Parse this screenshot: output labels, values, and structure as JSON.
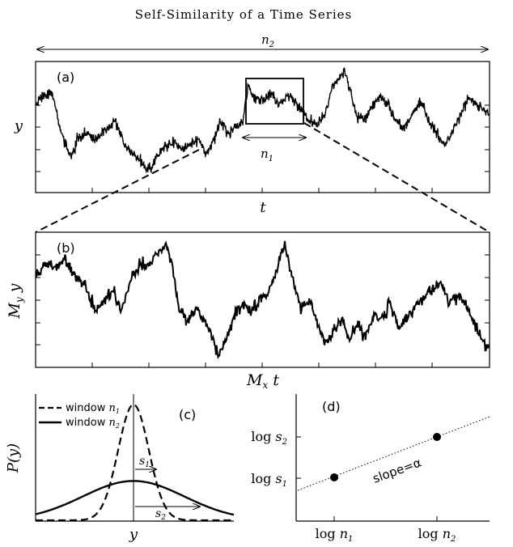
{
  "title": "Self-Similarity of a Time Series",
  "labels": {
    "n2_arrow": "n2",
    "n1_arrow": "n1",
    "panel_a": "(a)",
    "panel_b": "(b)",
    "panel_c": "(c)",
    "panel_d": "(d)",
    "axis_a_x": "t",
    "axis_a_y": "y",
    "axis_b_x": "Mx t",
    "axis_b_y": "My y",
    "axis_c_y": "P(y)",
    "axis_c_x": "y",
    "legend_n1": "window n1",
    "legend_n2": "window n2",
    "s1": "s1",
    "s2": "s2",
    "slope": "slope=α",
    "d_x_ticks": [
      "log n1",
      "log n2"
    ],
    "d_y_ticks": [
      "log s1",
      "log s2"
    ]
  },
  "chart_data": [
    {
      "panel": "(c)",
      "type": "line",
      "xlabel": "y",
      "ylabel": "P(y)",
      "series": [
        {
          "name": "window n1",
          "style": "dashed",
          "shape": "gaussian",
          "center": 0,
          "relative_width": 1,
          "relative_peak": 1
        },
        {
          "name": "window n2",
          "style": "solid",
          "shape": "gaussian",
          "center": 0,
          "relative_width": 3.3,
          "relative_peak": 0.34
        }
      ]
    },
    {
      "panel": "(d)",
      "type": "scatter",
      "x_ticks": [
        "log n1",
        "log n2"
      ],
      "y_ticks": [
        "log s1",
        "log s2"
      ],
      "points": [
        {
          "x": "log n1",
          "y": "log s1"
        },
        {
          "x": "log n2",
          "y": "log s2"
        }
      ],
      "fit_line": "dotted",
      "annotation": "slope=α"
    }
  ],
  "colors": {
    "ink": "#000000",
    "background": "#ffffff"
  }
}
